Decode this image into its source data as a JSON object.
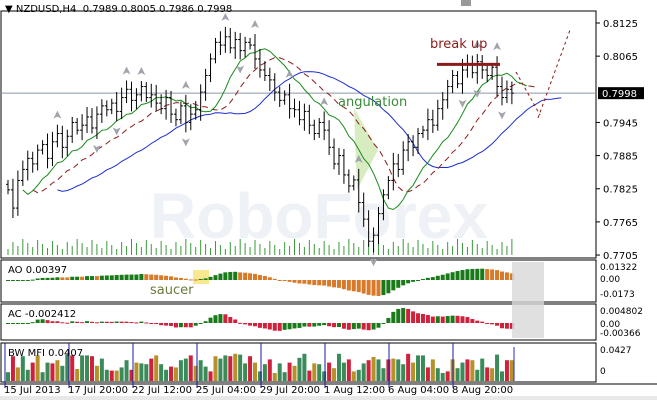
{
  "header": {
    "symbol": "NZDUSD,H4",
    "ohlc": "0.7989 0.8005 0.7986 0.7998"
  },
  "watermark": "RoboForex",
  "annotations": {
    "break_up": "break up",
    "angulation": "angulation",
    "saucer": "saucer"
  },
  "colors": {
    "bars": "#000000",
    "ma_fast": "#1a8a1a",
    "ma_mid": "#8b1a1a",
    "ma_slow": "#1e2fd0",
    "ao_up": "#1a7a1a",
    "ao_down": "#d87a2a",
    "ac_down": "#d0203c",
    "mfi_green": "#3a8a5a",
    "mfi_gold": "#b8902a",
    "mfi_red": "#d0203c",
    "annotation_red": "#8b1a1a",
    "annotation_green": "#3a8a3a"
  },
  "chart_data": {
    "type": "ohlc",
    "title": "NZDUSD,H4",
    "current_price": "0.7998",
    "price_ticks": [
      "0.8125",
      "0.8065",
      "0.7945",
      "0.7885",
      "0.7825",
      "0.7765",
      "0.7705"
    ],
    "ylim": [
      0.7705,
      0.8125
    ],
    "x_ticks": [
      "15 Jul 2013",
      "17 Jul 20:00",
      "22 Jul 12:00",
      "25 Jul 04:00",
      "29 Jul 20:00",
      "1 Aug 12:00",
      "6 Aug 04:00",
      "8 Aug 20:00"
    ],
    "closes": [
      0.7823,
      0.779,
      0.784,
      0.786,
      0.788,
      0.787,
      0.7895,
      0.7905,
      0.788,
      0.791,
      0.7925,
      0.79,
      0.792,
      0.7945,
      0.7931,
      0.794,
      0.7955,
      0.7935,
      0.796,
      0.7975,
      0.7968,
      0.798,
      0.7965,
      0.799,
      0.8005,
      0.7985,
      0.7995,
      0.801,
      0.799,
      0.7995,
      0.798,
      0.797,
      0.799,
      0.796,
      0.795,
      0.7975,
      0.7945,
      0.796,
      0.7968,
      0.8,
      0.803,
      0.806,
      0.809,
      0.8085,
      0.81,
      0.808,
      0.8095,
      0.8075,
      0.809,
      0.8085,
      0.806,
      0.804,
      0.803,
      0.8022,
      0.8,
      0.7985,
      0.7995,
      0.797,
      0.7968,
      0.795,
      0.7965,
      0.794,
      0.7925,
      0.7945,
      0.7931,
      0.79,
      0.787,
      0.7885,
      0.785,
      0.783,
      0.7841,
      0.78,
      0.777,
      0.773,
      0.7741,
      0.778,
      0.7814,
      0.784,
      0.787,
      0.786,
      0.7895,
      0.791,
      0.79,
      0.7925,
      0.7931,
      0.795,
      0.794,
      0.797,
      0.7986,
      0.801,
      0.803,
      0.8015,
      0.804,
      0.805,
      0.8035,
      0.8055,
      0.804,
      0.803,
      0.8045,
      0.801,
      0.799,
      0.8005,
      0.7998
    ],
    "break_up_level": 0.805,
    "indicators": [
      {
        "name": "AO",
        "value": "0.00397",
        "ticks": [
          "0.01322",
          "0.00",
          "-0.0173"
        ]
      },
      {
        "name": "AC",
        "value": "-0.002412",
        "ticks": [
          "0.004802",
          "0.00",
          "-0.00366"
        ]
      },
      {
        "name": "BW MFI",
        "value": "0.0407",
        "ticks": [
          "0.0427",
          "0"
        ]
      }
    ]
  }
}
